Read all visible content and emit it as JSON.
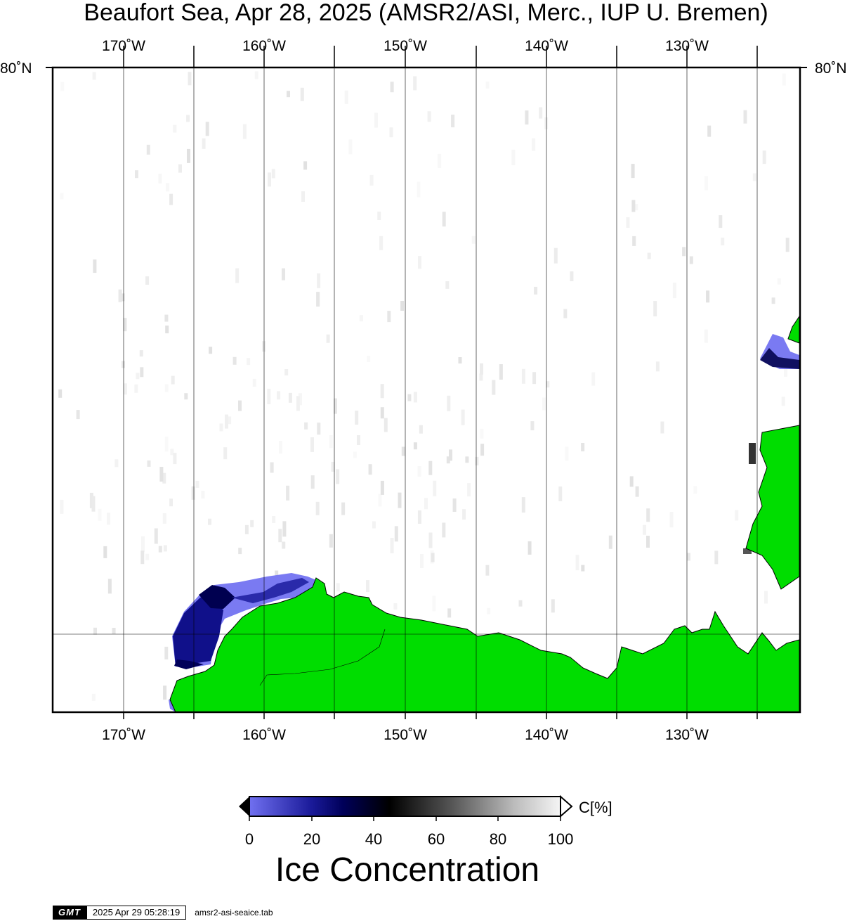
{
  "title": "Beaufort Sea, Apr 28, 2025 (AMSR2/ASI, Merc., IUP U. Bremen)",
  "lon_labels": [
    "170˚W",
    "160˚W",
    "150˚W",
    "140˚W",
    "130˚W"
  ],
  "lat_label": "80˚N",
  "colors": {
    "land": "#00dd00",
    "grid": "#000000",
    "ice_low": "#6f6ff0",
    "ice_mid": "#00006e",
    "ice_high": "#f5f5f5"
  },
  "colorbar": {
    "ticks": [
      "0",
      "20",
      "40",
      "60",
      "80",
      "100"
    ],
    "unit": "C[%]",
    "title": "Ice Concentration"
  },
  "footer": {
    "logo": "GMT",
    "timestamp": "2025 Apr 29 05:28:19",
    "file": "amsr2-asi-seaice.tab"
  }
}
